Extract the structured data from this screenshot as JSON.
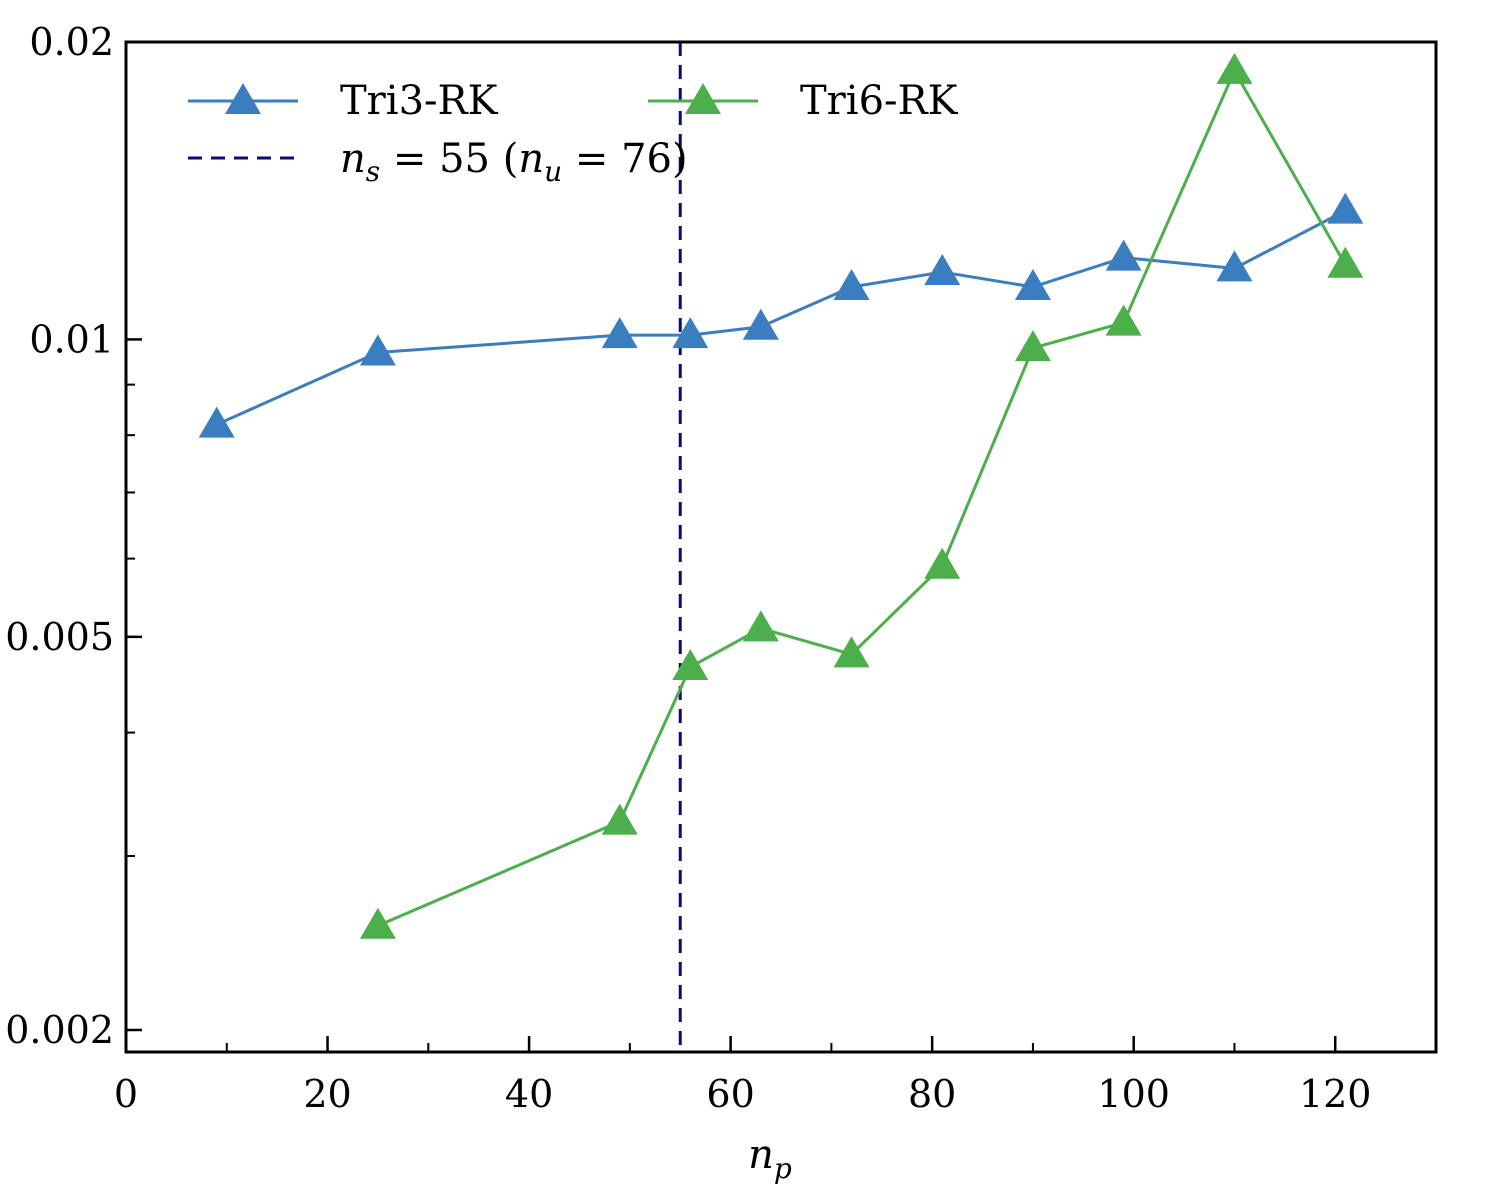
{
  "chart_data": {
    "type": "line",
    "xlabel": "n",
    "xlabel_sub": "p",
    "ylabel": "",
    "xlim": [
      0,
      130
    ],
    "ylim": [
      0.0019,
      0.02
    ],
    "yscale": "log",
    "xticks": [
      0,
      20,
      40,
      60,
      80,
      100,
      120
    ],
    "xtick_labels": [
      "0",
      "20",
      "40",
      "60",
      "80",
      "100",
      "120"
    ],
    "yticks": [
      0.002,
      0.005,
      0.01,
      0.02
    ],
    "ytick_labels": [
      "0.002",
      "0.005",
      "0.01",
      "0.02"
    ],
    "grid": false,
    "legend_position": "top-left",
    "series": [
      {
        "name": "Tri3-RK",
        "color": "#3a7ebf",
        "marker": "triangle",
        "x": [
          9,
          25,
          49,
          56,
          63,
          72,
          81,
          90,
          99,
          110,
          121
        ],
        "y": [
          0.0082,
          0.0097,
          0.0101,
          0.0101,
          0.0103,
          0.0113,
          0.0117,
          0.0113,
          0.0121,
          0.0118,
          0.0135
        ]
      },
      {
        "name": "Tri6-RK",
        "color": "#4caf4c",
        "marker": "triangle",
        "x": [
          25,
          49,
          56,
          63,
          72,
          81,
          90,
          99,
          110,
          121
        ],
        "y": [
          0.00255,
          0.00325,
          0.00466,
          0.0051,
          0.0048,
          0.0059,
          0.0098,
          0.0104,
          0.0187,
          0.0119
        ]
      }
    ],
    "vline": {
      "x": 55,
      "color": "#0b0b7a",
      "style": "dashed",
      "label_parts": {
        "n1": "n",
        "s1": "s",
        "eq1": " = 55 (",
        "n2": "n",
        "s2": "u",
        "eq2": " = 76)"
      }
    }
  }
}
